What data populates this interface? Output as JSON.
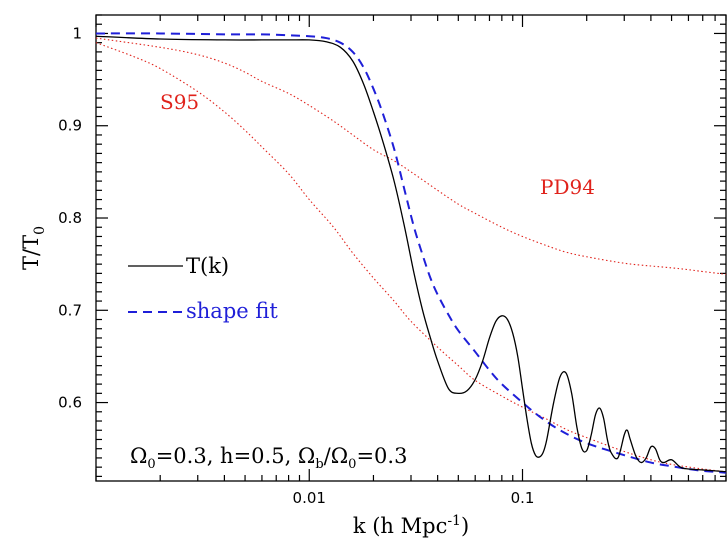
{
  "chart_data": {
    "type": "line",
    "xlabel": {
      "main": "k (h Mpc",
      "sup": "-1",
      "close": ")"
    },
    "ylabel": {
      "main": "T/T",
      "sub": "0"
    },
    "xscale": "log",
    "xlim": [
      0.001,
      0.9
    ],
    "ylim": [
      0.515,
      1.02
    ],
    "x_tick_labels": [
      {
        "value": 0.01,
        "label": "0.01"
      },
      {
        "value": 0.1,
        "label": "0.1"
      }
    ],
    "y_tick_labels": [
      {
        "value": 1.0,
        "label": "1"
      },
      {
        "value": 0.9,
        "label": "0.9"
      },
      {
        "value": 0.8,
        "label": "0.8"
      },
      {
        "value": 0.7,
        "label": "0.7"
      },
      {
        "value": 0.6,
        "label": "0.6"
      }
    ],
    "series": [
      {
        "name": "T(k)",
        "style": "solid",
        "color": "#000000",
        "x": [
          0.001,
          0.002,
          0.004,
          0.006,
          0.008,
          0.01,
          0.012,
          0.014,
          0.016,
          0.018,
          0.02,
          0.022,
          0.025,
          0.028,
          0.031,
          0.034,
          0.037,
          0.04,
          0.045,
          0.05,
          0.055,
          0.06,
          0.065,
          0.07,
          0.075,
          0.08,
          0.085,
          0.09,
          0.095,
          0.1,
          0.105,
          0.11,
          0.115,
          0.12,
          0.125,
          0.13,
          0.14,
          0.15,
          0.16,
          0.17,
          0.18,
          0.19,
          0.2,
          0.21,
          0.22,
          0.23,
          0.24,
          0.25,
          0.26,
          0.28,
          0.3,
          0.31,
          0.32,
          0.34,
          0.36,
          0.38,
          0.4,
          0.42,
          0.44,
          0.46,
          0.5,
          0.55,
          0.6,
          0.7,
          0.8,
          0.9
        ],
        "y": [
          0.997,
          0.994,
          0.993,
          0.993,
          0.993,
          0.993,
          0.991,
          0.985,
          0.97,
          0.945,
          0.915,
          0.885,
          0.84,
          0.79,
          0.74,
          0.7,
          0.67,
          0.645,
          0.615,
          0.61,
          0.613,
          0.625,
          0.645,
          0.67,
          0.688,
          0.694,
          0.69,
          0.675,
          0.65,
          0.615,
          0.582,
          0.556,
          0.543,
          0.541,
          0.546,
          0.56,
          0.6,
          0.628,
          0.632,
          0.61,
          0.573,
          0.55,
          0.548,
          0.565,
          0.587,
          0.594,
          0.583,
          0.56,
          0.546,
          0.54,
          0.565,
          0.57,
          0.56,
          0.542,
          0.535,
          0.54,
          0.552,
          0.55,
          0.538,
          0.535,
          0.538,
          0.53,
          0.528,
          0.527,
          0.526,
          0.525
        ]
      },
      {
        "name": "shape fit",
        "style": "dashed",
        "color": "#1f1fd8",
        "x": [
          0.001,
          0.002,
          0.004,
          0.006,
          0.008,
          0.01,
          0.012,
          0.014,
          0.016,
          0.018,
          0.02,
          0.022,
          0.025,
          0.028,
          0.031,
          0.034,
          0.037,
          0.04,
          0.045,
          0.05,
          0.06,
          0.07,
          0.08,
          0.1,
          0.12,
          0.15,
          0.2,
          0.3,
          0.4,
          0.5,
          0.6,
          0.7,
          0.8,
          0.9
        ],
        "y": [
          1.0,
          1.0,
          0.999,
          0.999,
          0.998,
          0.997,
          0.995,
          0.99,
          0.98,
          0.963,
          0.94,
          0.915,
          0.875,
          0.83,
          0.79,
          0.76,
          0.735,
          0.717,
          0.695,
          0.678,
          0.655,
          0.635,
          0.62,
          0.6,
          0.585,
          0.57,
          0.556,
          0.543,
          0.535,
          0.531,
          0.528,
          0.526,
          0.525,
          0.524
        ]
      },
      {
        "name": "PD94",
        "style": "dotted",
        "color": "#e0221b",
        "x": [
          0.001,
          0.002,
          0.003,
          0.004,
          0.005,
          0.006,
          0.008,
          0.01,
          0.013,
          0.016,
          0.02,
          0.025,
          0.03,
          0.04,
          0.05,
          0.06,
          0.08,
          0.1,
          0.13,
          0.16,
          0.2,
          0.3,
          0.4,
          0.5,
          0.6,
          0.7,
          0.9
        ],
        "y": [
          0.995,
          0.985,
          0.977,
          0.968,
          0.958,
          0.948,
          0.935,
          0.922,
          0.905,
          0.89,
          0.874,
          0.862,
          0.85,
          0.83,
          0.815,
          0.805,
          0.79,
          0.78,
          0.77,
          0.763,
          0.758,
          0.751,
          0.748,
          0.746,
          0.744,
          0.742,
          0.739
        ]
      },
      {
        "name": "S95",
        "style": "dotted",
        "color": "#e0221b",
        "x": [
          0.001,
          0.0015,
          0.002,
          0.003,
          0.004,
          0.005,
          0.006,
          0.008,
          0.01,
          0.013,
          0.016,
          0.02,
          0.025,
          0.03,
          0.04,
          0.05,
          0.06,
          0.08,
          0.1,
          0.13,
          0.16,
          0.2,
          0.3,
          0.4,
          0.5,
          0.7,
          0.9
        ],
        "y": [
          0.99,
          0.975,
          0.962,
          0.937,
          0.915,
          0.895,
          0.877,
          0.848,
          0.82,
          0.79,
          0.762,
          0.735,
          0.71,
          0.688,
          0.66,
          0.64,
          0.624,
          0.607,
          0.595,
          0.582,
          0.571,
          0.562,
          0.547,
          0.538,
          0.533,
          0.528,
          0.525
        ]
      }
    ],
    "legend": [
      {
        "label": "T(k)",
        "style": "solid",
        "color": "#000000"
      },
      {
        "label": "shape fit",
        "style": "dashed",
        "color": "#1f1fd8"
      }
    ],
    "annotations": [
      {
        "text": "S95",
        "color": "#e0221b",
        "at": [
          0.0028,
          0.9
        ]
      },
      {
        "text": "PD94",
        "color": "#e0221b",
        "at": [
          0.22,
          0.8
        ]
      }
    ],
    "parameters_text": {
      "Omega0": "Ω",
      "sub0": "0",
      "eq1": "=0.3, h=0.5, ",
      "Omegab": "Ω",
      "subb": "b",
      "slash": "/",
      "Omega0b": "Ω",
      "sub0b": "0",
      "eq2": "=0.3"
    },
    "grid": false,
    "legend_position": "left-middle"
  }
}
